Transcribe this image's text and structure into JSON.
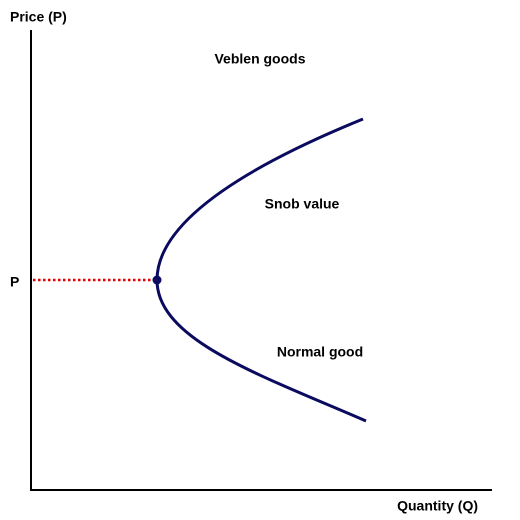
{
  "axes": {
    "y_label": "Price (P)",
    "x_label": "Quantity (Q)",
    "price_marker": "P"
  },
  "annotations": [
    "Veblen goods",
    "Snob value",
    "Normal good"
  ]
}
